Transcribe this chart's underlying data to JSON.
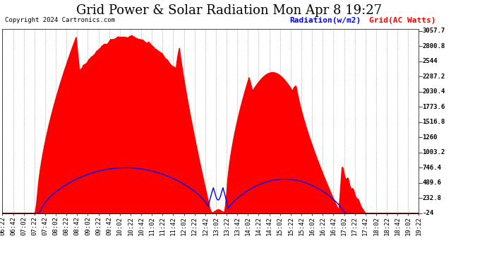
{
  "title": "Grid Power & Solar Radiation Mon Apr 8 19:27",
  "copyright": "Copyright 2024 Cartronics.com",
  "legend_radiation": "Radiation(w/m2)",
  "legend_grid": "Grid(AC Watts)",
  "radiation_color": "#0000FF",
  "grid_fill_color": "#FF0000",
  "background_color": "#FFFFFF",
  "grid_line_color": "#AAAAAA",
  "ymin": -24.0,
  "ymax": 3057.7,
  "ytick_values": [
    -24.0,
    232.8,
    489.6,
    746.4,
    1003.2,
    1260.0,
    1516.8,
    1773.6,
    2030.4,
    2287.2,
    2544.0,
    2800.8,
    3057.7
  ],
  "xtick_labels": [
    "06:22",
    "06:42",
    "07:02",
    "07:22",
    "07:42",
    "08:02",
    "08:22",
    "08:42",
    "09:02",
    "09:22",
    "09:42",
    "10:02",
    "10:22",
    "10:42",
    "11:02",
    "11:22",
    "11:42",
    "12:02",
    "12:22",
    "12:42",
    "13:02",
    "13:22",
    "13:42",
    "14:02",
    "14:22",
    "14:42",
    "15:02",
    "15:22",
    "15:42",
    "16:02",
    "16:22",
    "16:42",
    "17:02",
    "17:22",
    "17:42",
    "18:02",
    "18:22",
    "18:42",
    "19:02",
    "19:22"
  ],
  "title_fontsize": 13,
  "tick_fontsize": 6.5,
  "legend_fontsize": 8,
  "copyright_fontsize": 6.5,
  "n_xtick_labels": 40
}
